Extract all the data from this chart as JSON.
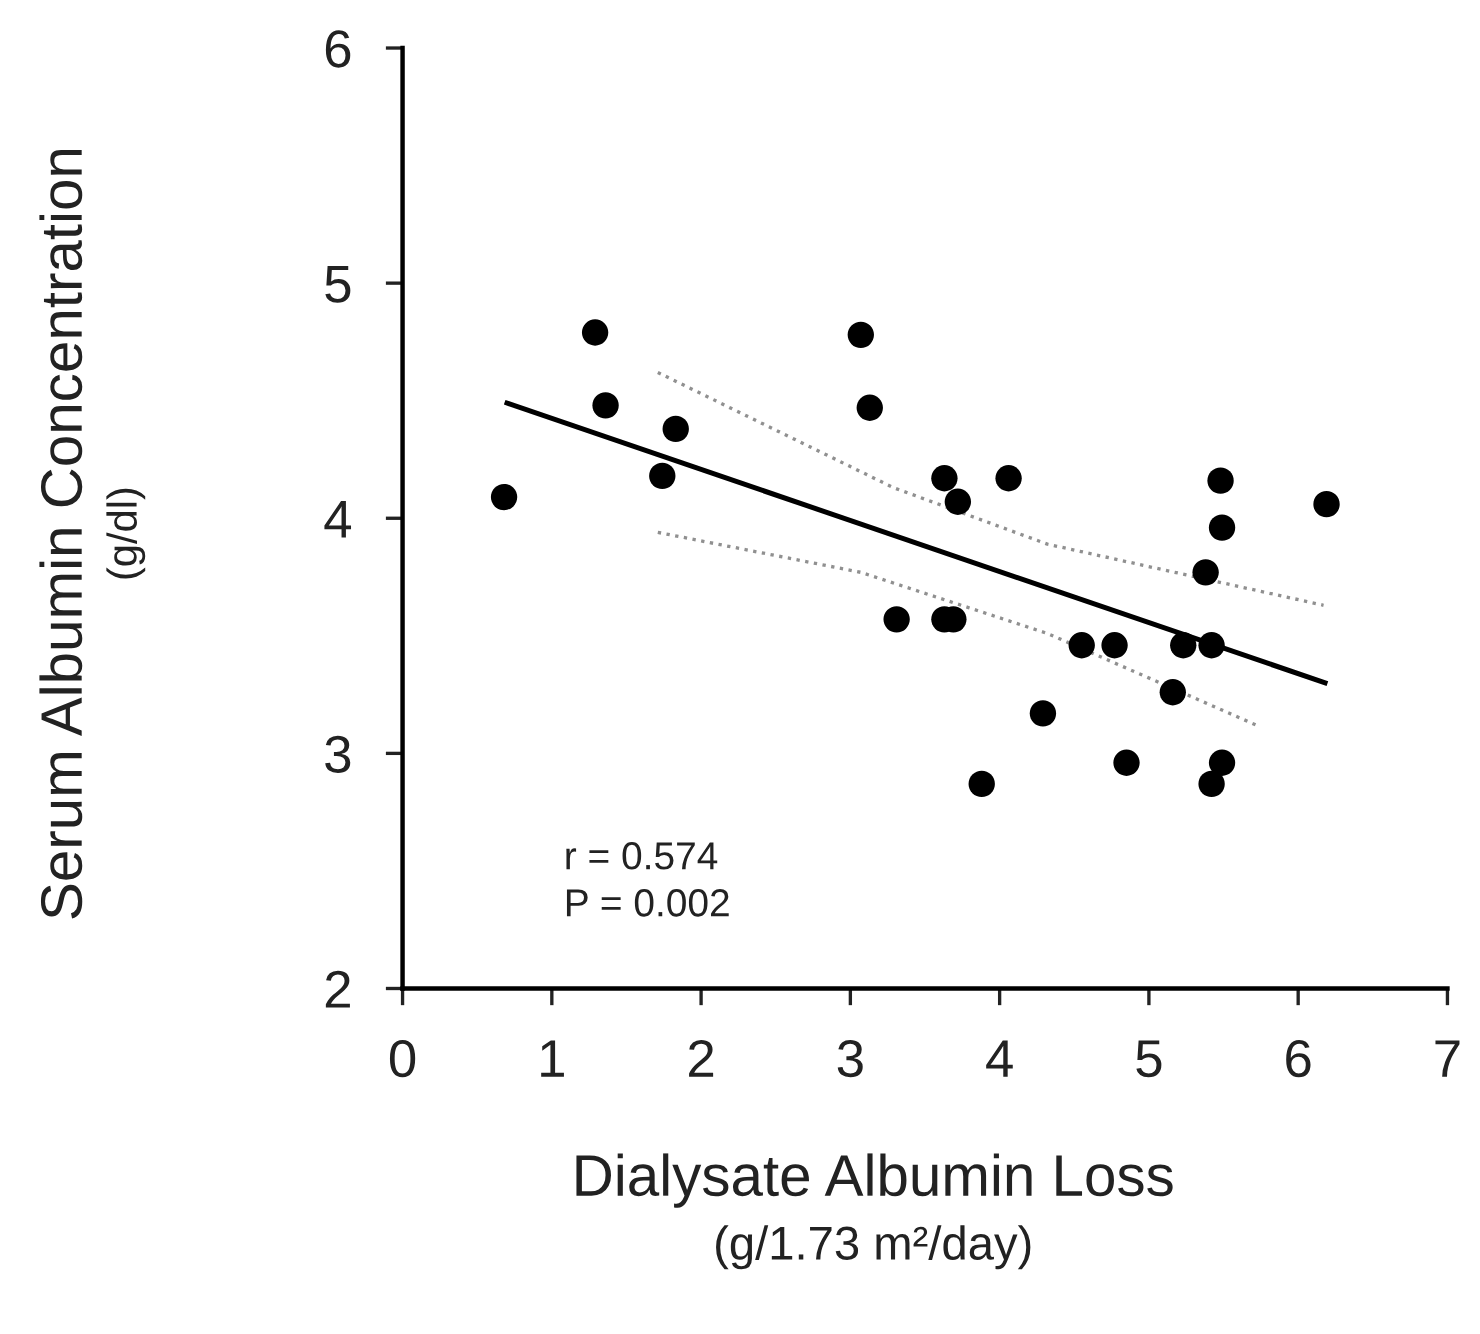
{
  "chart_data": {
    "type": "scatter",
    "xlabel": "Dialysate Albumin Loss\n(g/1.73 m²/day)",
    "ylabel": "Serum Albumin Concentration\n(g/dl)",
    "xlim": [
      0,
      7
    ],
    "ylim": [
      2,
      6
    ],
    "xticks": [
      0,
      1,
      2,
      3,
      4,
      5,
      6,
      7
    ],
    "yticks": [
      2,
      3,
      4,
      5,
      6
    ],
    "grid": false,
    "legend": false,
    "annotations": [
      "r = 0.574",
      "P = 0.002"
    ],
    "series": [
      {
        "marker": "circle",
        "color": "#000000",
        "x": [
          0.68,
          1.29,
          1.36,
          1.83,
          1.74,
          3.07,
          3.13,
          3.63,
          3.72,
          4.06,
          5.48,
          5.49,
          5.38,
          6.19,
          3.31,
          3.63,
          3.69,
          4.55,
          4.77,
          5.23,
          5.42,
          5.16,
          4.29,
          4.85,
          5.49,
          5.42,
          3.88
        ],
        "values": [
          4.09,
          4.79,
          4.48,
          4.38,
          4.18,
          4.78,
          4.47,
          4.17,
          4.07,
          4.17,
          4.16,
          3.96,
          3.77,
          4.06,
          3.57,
          3.57,
          3.57,
          3.46,
          3.46,
          3.46,
          3.46,
          3.26,
          3.17,
          2.96,
          2.96,
          2.87,
          2.87
        ]
      },
      {
        "type": "line",
        "color": "#000000",
        "line_style": "solid",
        "x": [
          0.7,
          6.18
        ],
        "values": [
          4.49,
          3.3
        ]
      },
      {
        "type": "line",
        "color": "#909090",
        "line_style": "dotted",
        "x": [
          1.71,
          3.29,
          4.32,
          6.17
        ],
        "values": [
          4.62,
          4.13,
          3.89,
          3.63
        ]
      },
      {
        "type": "line",
        "color": "#909090",
        "line_style": "dotted",
        "x": [
          1.71,
          3.07,
          4.32,
          5.72
        ],
        "values": [
          3.94,
          3.77,
          3.51,
          3.12
        ]
      }
    ]
  }
}
